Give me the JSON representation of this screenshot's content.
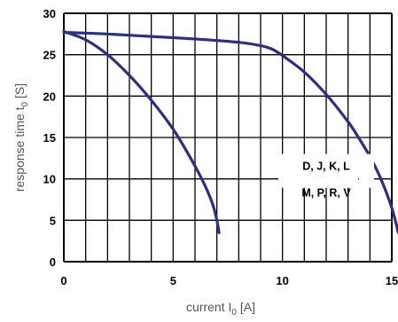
{
  "chart_data": {
    "type": "line",
    "title": "",
    "xlabel": "current I",
    "xlabel_sub": "0",
    "xlabel_unit": " [A]",
    "ylabel": "response time t",
    "ylabel_sub": "0",
    "ylabel_unit": " [S]",
    "xlim": [
      0,
      15
    ],
    "ylim": [
      0,
      30
    ],
    "x_ticks": [
      0,
      5,
      10,
      15
    ],
    "y_ticks": [
      0,
      5,
      10,
      15,
      20,
      25,
      30
    ],
    "grid": true,
    "annotation": {
      "line1": "D, J, K, L",
      "line2": "M, P, R, V"
    },
    "series": [
      {
        "color": "#2b2e8c",
        "x": [
          0,
          1,
          2,
          3,
          4,
          5,
          5.8,
          6.4,
          6.8,
          7.0,
          7.1
        ],
        "y": [
          27.8,
          26.8,
          25.0,
          22.5,
          19.5,
          16.0,
          12.5,
          9.5,
          7.0,
          5.0,
          3.5
        ]
      },
      {
        "color": "#2b2e8c",
        "x": [
          0,
          2,
          4,
          6,
          8,
          9,
          9.5,
          10,
          11,
          12,
          13,
          13.5,
          14,
          14.5,
          15,
          15.3
        ],
        "y": [
          27.7,
          27.5,
          27.2,
          26.9,
          26.5,
          26.1,
          25.7,
          24.9,
          22.9,
          20.2,
          16.9,
          14.9,
          12.7,
          10.0,
          6.5,
          3.5
        ]
      }
    ]
  }
}
